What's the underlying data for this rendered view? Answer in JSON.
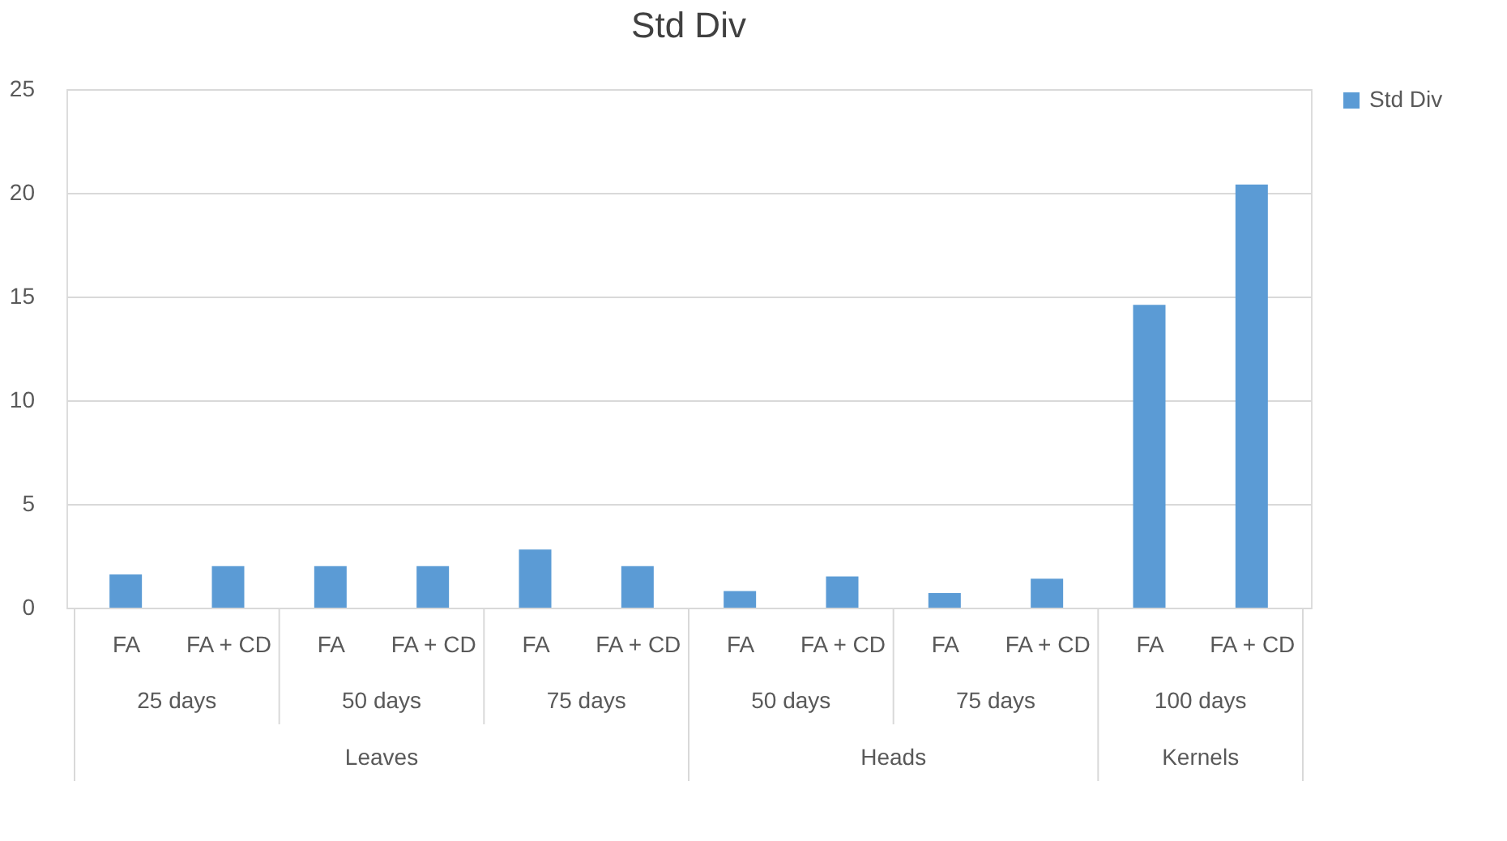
{
  "chart_data": {
    "type": "bar",
    "title": "Std Div",
    "categories": [
      "FA",
      "FA + CD",
      "FA",
      "FA + CD",
      "FA",
      "FA + CD",
      "FA",
      "FA + CD",
      "FA",
      "FA + CD",
      "FA",
      "FA + CD"
    ],
    "series": [
      {
        "name": "Std Div",
        "color": "#5b9bd5",
        "values": [
          1.6,
          2.0,
          2.0,
          2.0,
          2.8,
          2.0,
          0.8,
          1.5,
          0.7,
          1.4,
          14.6,
          20.4
        ]
      }
    ],
    "ylim": [
      0,
      25
    ],
    "yticks": [
      0,
      5,
      10,
      15,
      20,
      25
    ],
    "grid": "y",
    "legend": "right",
    "annotations": [
      "25 days",
      "50 days",
      "75 days",
      "50 days",
      "75 days",
      "100 days",
      "Leaves",
      "Heads",
      "Kernels"
    ]
  }
}
